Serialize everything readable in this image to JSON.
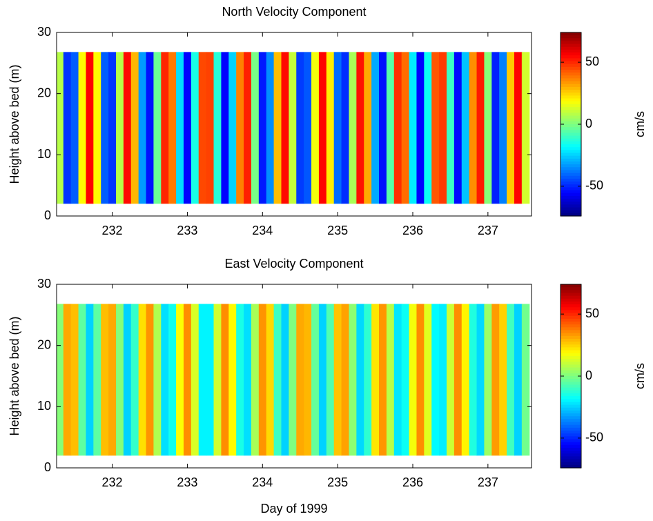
{
  "chart_data": [
    {
      "type": "heatmap",
      "title": "North Velocity Component",
      "ylabel": "Height above bed (m)",
      "colormap": "jet",
      "clim": [
        -74,
        74
      ],
      "cticks": [
        -50,
        0,
        50
      ],
      "clabel": "cm/s",
      "xlim": [
        231.26,
        237.58
      ],
      "xticks": [
        232,
        233,
        234,
        235,
        236,
        237
      ],
      "ylim": [
        0,
        30
      ],
      "yticks": [
        0,
        10,
        20,
        30
      ],
      "ybins": [
        2,
        26.8
      ],
      "x": [
        231.3,
        231.4,
        231.5,
        231.6,
        231.7,
        231.8,
        231.9,
        232.0,
        232.1,
        232.2,
        232.3,
        232.4,
        232.5,
        232.6,
        232.7,
        232.8,
        232.9,
        233.0,
        233.1,
        233.2,
        233.3,
        233.4,
        233.5,
        233.6,
        233.7,
        233.8,
        233.9,
        234.0,
        234.1,
        234.2,
        234.3,
        234.4,
        234.5,
        234.6,
        234.7,
        234.8,
        234.9,
        235.0,
        235.1,
        235.2,
        235.3,
        235.4,
        235.5,
        235.6,
        235.7,
        235.8,
        235.9,
        236.0,
        236.1,
        236.2,
        236.3,
        236.4,
        236.5,
        236.6,
        236.7,
        236.8,
        236.9,
        237.0,
        237.1,
        237.2,
        237.3,
        237.4,
        237.5
      ],
      "values": [
        8,
        -48,
        -42,
        19,
        55,
        19,
        -42,
        -48,
        8,
        54,
        29,
        -33,
        -53,
        -3,
        50,
        38,
        -23,
        -55,
        -15,
        45,
        46,
        -13,
        -55,
        -25,
        37,
        51,
        -1,
        -52,
        -35,
        28,
        54,
        10,
        -47,
        -43,
        17,
        55,
        21,
        -40,
        -49,
        6,
        53,
        31,
        -31,
        -53,
        -6,
        49,
        40,
        -21,
        -55,
        -17,
        43,
        47,
        -10,
        -54,
        -27,
        35,
        52,
        1,
        -51,
        -37,
        26,
        55,
        12
      ]
    },
    {
      "type": "heatmap",
      "title": "East Velocity Component",
      "ylabel": "Height above bed (m)",
      "xlabel": "Day of 1999",
      "colormap": "jet",
      "clim": [
        -74,
        74
      ],
      "cticks": [
        -50,
        0,
        50
      ],
      "clabel": "cm/s",
      "xlim": [
        231.26,
        237.58
      ],
      "xticks": [
        232,
        233,
        234,
        235,
        236,
        237
      ],
      "ylim": [
        0,
        30
      ],
      "yticks": [
        0,
        10,
        20,
        30
      ],
      "ybins": [
        2,
        26.8
      ],
      "x": [
        231.3,
        231.4,
        231.5,
        231.6,
        231.7,
        231.8,
        231.9,
        232.0,
        232.1,
        232.2,
        232.3,
        232.4,
        232.5,
        232.6,
        232.7,
        232.8,
        232.9,
        233.0,
        233.1,
        233.2,
        233.3,
        233.4,
        233.5,
        233.6,
        233.7,
        233.8,
        233.9,
        234.0,
        234.1,
        234.2,
        234.3,
        234.4,
        234.5,
        234.6,
        234.7,
        234.8,
        234.9,
        235.0,
        235.1,
        235.2,
        235.3,
        235.4,
        235.5,
        235.6,
        235.7,
        235.8,
        235.9,
        236.0,
        236.1,
        236.2,
        236.3,
        236.4,
        236.5,
        236.6,
        236.7,
        236.8,
        236.9,
        237.0,
        237.1,
        237.2,
        237.3,
        237.4,
        237.5
      ],
      "values": [
        1,
        31,
        28,
        -5,
        -25,
        -5,
        28,
        31,
        1,
        -25,
        -11,
        23,
        34,
        7,
        -23,
        -16,
        18,
        35,
        13,
        -20,
        -20,
        12,
        35,
        19,
        -15,
        -23,
        6,
        34,
        24,
        -10,
        -25,
        0,
        31,
        29,
        -4,
        -25,
        -7,
        27,
        32,
        2,
        -24,
        -12,
        22,
        34,
        8,
        -22,
        -17,
        17,
        35,
        14,
        -19,
        -21,
        11,
        35,
        20,
        -14,
        -24,
        4,
        33,
        25,
        -9,
        -25,
        -2
      ]
    }
  ]
}
